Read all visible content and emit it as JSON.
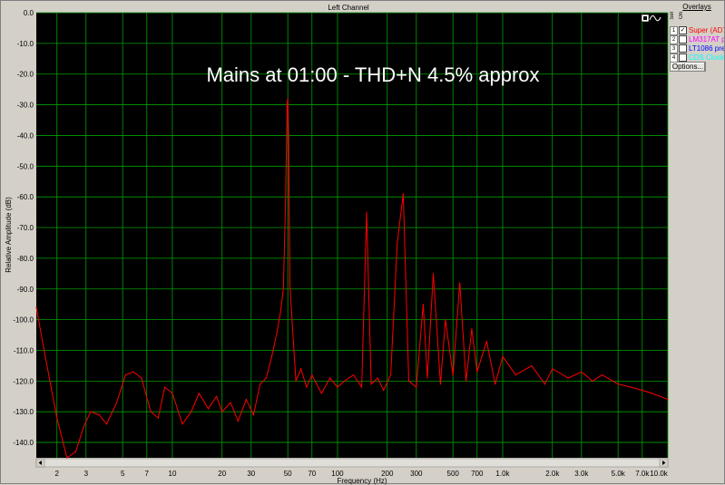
{
  "window": {
    "title": "Left Channel"
  },
  "overlays": {
    "title": "Overlays",
    "col_sel": "Sel",
    "col_on": "On",
    "items": [
      {
        "num": "1",
        "checked": true,
        "label": "Super (AD7",
        "color": "#ff0000"
      },
      {
        "num": "2",
        "checked": false,
        "label": "LM317AT p",
        "color": "#ff00ff"
      },
      {
        "num": "3",
        "checked": false,
        "label": "LT1086 pre",
        "color": "#0000ff"
      },
      {
        "num": "4",
        "checked": false,
        "label": "CDS Clock",
        "color": "#00ffff"
      }
    ],
    "options_label": "Options..."
  },
  "chart_data": {
    "type": "line",
    "title": "Mains at 01:00 - THD+N 4.5% approx",
    "xlabel": "Frequency (Hz)",
    "ylabel": "Relative Amplitude (dB)",
    "xscale": "log",
    "xlim": [
      1.5,
      10000
    ],
    "ylim": [
      -145,
      0
    ],
    "grid": true,
    "background": "#000000",
    "grid_color": "#00a000",
    "yticks": [
      0,
      -10,
      -20,
      -30,
      -40,
      -50,
      -60,
      -70,
      -80,
      -90,
      -100,
      -110,
      -120,
      -130,
      -140
    ],
    "ytick_labels": [
      "0.0",
      "-10.0",
      "-20.0",
      "-30.0",
      "-40.0",
      "-50.0",
      "-60.0",
      "-70.0",
      "-80.0",
      "-90.0",
      "-100.0",
      "-110.0",
      "-120.0",
      "-130.0",
      "-140.0"
    ],
    "xticks": [
      2,
      3,
      5,
      7,
      10,
      20,
      30,
      50,
      70,
      100,
      200,
      300,
      500,
      700,
      1000,
      2000,
      3000,
      5000,
      7000,
      10000
    ],
    "xtick_labels": [
      "2",
      "3",
      "5",
      "7",
      "10",
      "20",
      "30",
      "50",
      "70",
      "100",
      "200",
      "300",
      "500",
      "700",
      "1.0k",
      "2.0k",
      "3.0k",
      "5.0k",
      "7.0k",
      "10.0k"
    ],
    "series": [
      {
        "color": "#ff0000",
        "x": [
          1.5,
          1.7,
          2.0,
          2.3,
          2.6,
          2.9,
          3.2,
          3.6,
          4.0,
          4.6,
          5.2,
          5.8,
          6.5,
          7.4,
          8.2,
          9.0,
          10.0,
          11.5,
          13.0,
          14.5,
          16.5,
          18.5,
          20.0,
          22.5,
          25.0,
          28.0,
          31.0,
          34.0,
          37.0,
          40.0,
          43.0,
          45.0,
          47.0,
          48.5,
          49.5,
          50.0,
          50.5,
          51.5,
          53.0,
          56.0,
          60.0,
          65.0,
          70.0,
          80.0,
          90.0,
          100.0,
          110.0,
          125.0,
          140.0,
          150.0,
          160.0,
          175.0,
          190.0,
          210.0,
          230.0,
          250.0,
          270.0,
          300.0,
          330.0,
          350.0,
          380.0,
          420.0,
          450.0,
          500.0,
          550.0,
          600.0,
          650.0,
          700.0,
          800.0,
          900.0,
          1000.0,
          1200.0,
          1500.0,
          1800.0,
          2000.0,
          2500.0,
          3000.0,
          3500.0,
          4000.0,
          5000.0,
          6000.0,
          7000.0,
          8000.0,
          9000.0,
          10000.0
        ],
        "y": [
          -96,
          -112,
          -132,
          -145,
          -143,
          -135,
          -130,
          -131,
          -134,
          -127,
          -118,
          -117,
          -119,
          -130,
          -132,
          -122,
          -124,
          -134,
          -130,
          -124,
          -129,
          -125,
          -130,
          -127,
          -133,
          -126,
          -131,
          -121,
          -119,
          -112,
          -104,
          -98,
          -90,
          -60,
          -30,
          -28,
          -40,
          -88,
          -100,
          -120,
          -116,
          -122,
          -118,
          -124,
          -119,
          -122,
          -120,
          -118,
          -122,
          -65,
          -121,
          -119,
          -123,
          -118,
          -75,
          -59,
          -120,
          -122,
          -95,
          -119,
          -85,
          -121,
          -100,
          -118,
          -88,
          -120,
          -103,
          -117,
          -107,
          -121,
          -112,
          -118,
          -115,
          -121,
          -116,
          -119,
          -117,
          -120,
          -118,
          -121,
          -122,
          -123,
          -124,
          -125,
          -126
        ]
      }
    ]
  }
}
